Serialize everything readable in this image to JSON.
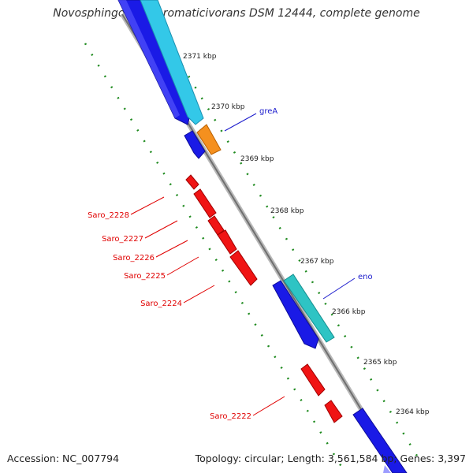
{
  "title": "Novosphingobium aromaticivorans DSM 12444, complete genome",
  "footer": {
    "accession": "Accession: NC_007794",
    "topology": "Topology: circular; Length: 3,561,584 bp; Genes: 3,397"
  },
  "colors": {
    "genome_line": "#8c8c8c",
    "tick": "#1e8a1e",
    "gene_label_blue": "#1a1acc",
    "gene_label_red": "#e00000",
    "gene_blue": "#1a1ae6",
    "gene_cyan": "#33c8e8",
    "gene_teal": "#2ec4c4",
    "gene_orange": "#f5901e",
    "gene_red": "#f01414"
  },
  "ticks": [
    "2371 kbp",
    "2370 kbp",
    "2369 kbp",
    "2368 kbp",
    "2367 kbp",
    "2366 kbp",
    "2365 kbp",
    "2364 kbp"
  ],
  "gene_labels": {
    "greA": "greA",
    "eno": "eno",
    "saro_2228": "Saro_2228",
    "saro_2227": "Saro_2227",
    "saro_2226": "Saro_2226",
    "saro_2225": "Saro_2225",
    "saro_2224": "Saro_2224",
    "saro_2222": "Saro_2222"
  }
}
